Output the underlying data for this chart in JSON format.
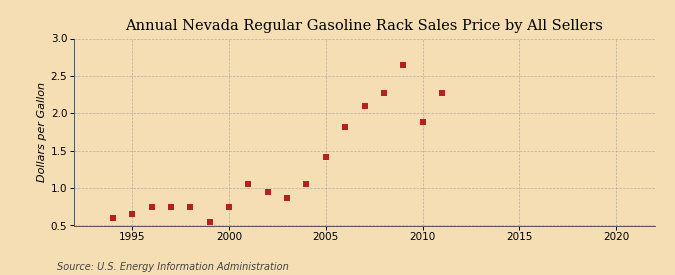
{
  "title": "Annual Nevada Regular Gasoline Rack Sales Price by All Sellers",
  "ylabel": "Dollars per Gallon",
  "source": "Source: U.S. Energy Information Administration",
  "years": [
    1994,
    1995,
    1996,
    1997,
    1998,
    1999,
    2000,
    2001,
    2002,
    2003,
    2004,
    2005,
    2006,
    2007,
    2008,
    2009,
    2010,
    2011
  ],
  "values": [
    0.6,
    0.65,
    0.75,
    0.75,
    0.75,
    0.55,
    0.75,
    1.05,
    0.95,
    0.87,
    1.05,
    1.42,
    1.82,
    2.1,
    2.27,
    2.65,
    1.88,
    2.27
  ],
  "marker_color": "#b22222",
  "background_color": "#f5deb3",
  "grid_color": "#999999",
  "xlim": [
    1992,
    2022
  ],
  "ylim": [
    0.5,
    3.0
  ],
  "xticks": [
    1995,
    2000,
    2005,
    2010,
    2015,
    2020
  ],
  "yticks": [
    0.5,
    1.0,
    1.5,
    2.0,
    2.5,
    3.0
  ],
  "title_fontsize": 10.5,
  "label_fontsize": 8,
  "tick_fontsize": 7.5,
  "source_fontsize": 7
}
